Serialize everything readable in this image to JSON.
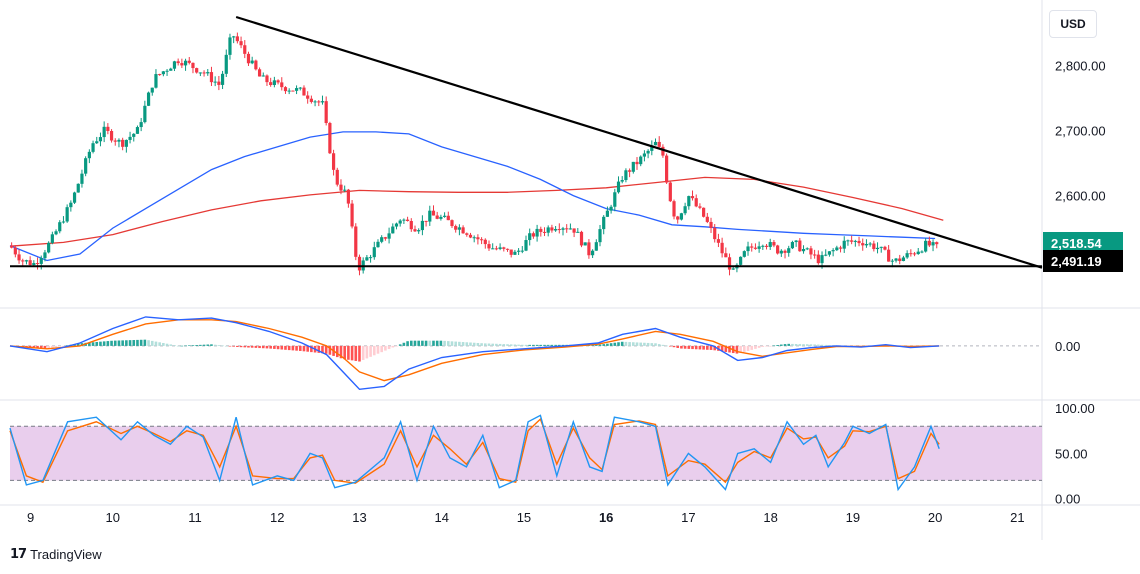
{
  "currency": "USD",
  "footer": {
    "brand": "TradingView",
    "logo_icon": "tradingview-logo-icon"
  },
  "price_tags": {
    "current": "2,518.54",
    "support": "2,491.19"
  },
  "colors": {
    "up": "#089981",
    "down": "#f23645",
    "ma_short": "#2962ff",
    "ma_long": "#e53935",
    "macd": "#2962ff",
    "signal": "#ff6d00",
    "stoch_k": "#2196f3",
    "stoch_d": "#ff6d00",
    "stoch_band": "#e1bee7",
    "trendline": "#000000"
  },
  "chart_data": [
    {
      "type": "candlestick",
      "panel": "price",
      "y_ticks": [
        2800,
        2700,
        2600
      ],
      "y_tick_labels": [
        "2,800.00",
        "2,700.00",
        "2,600.00"
      ],
      "ylim": [
        2430,
        2895
      ],
      "x_ticks": [
        "9",
        "10",
        "11",
        "12",
        "13",
        "14",
        "15",
        "16",
        "17",
        "18",
        "19",
        "20",
        "21"
      ],
      "bold_x_tick": "16",
      "x_range_days": [
        8.75,
        21.3
      ],
      "close_path": [
        [
          8.75,
          2523
        ],
        [
          8.9,
          2500
        ],
        [
          9.05,
          2495
        ],
        [
          9.25,
          2530
        ],
        [
          9.5,
          2590
        ],
        [
          9.75,
          2680
        ],
        [
          9.9,
          2700
        ],
        [
          10.1,
          2680
        ],
        [
          10.3,
          2700
        ],
        [
          10.5,
          2780
        ],
        [
          10.8,
          2810
        ],
        [
          11.1,
          2790
        ],
        [
          11.3,
          2770
        ],
        [
          11.45,
          2850
        ],
        [
          11.55,
          2830
        ],
        [
          11.8,
          2780
        ],
        [
          12.0,
          2770
        ],
        [
          12.3,
          2760
        ],
        [
          12.55,
          2740
        ],
        [
          12.7,
          2625
        ],
        [
          12.85,
          2600
        ],
        [
          12.95,
          2510
        ],
        [
          13.0,
          2490
        ],
        [
          13.2,
          2520
        ],
        [
          13.5,
          2565
        ],
        [
          13.7,
          2550
        ],
        [
          13.85,
          2570
        ],
        [
          14.0,
          2565
        ],
        [
          14.3,
          2545
        ],
        [
          14.6,
          2520
        ],
        [
          14.9,
          2510
        ],
        [
          15.1,
          2540
        ],
        [
          15.4,
          2555
        ],
        [
          15.6,
          2550
        ],
        [
          15.8,
          2510
        ],
        [
          16.0,
          2570
        ],
        [
          16.2,
          2630
        ],
        [
          16.45,
          2660
        ],
        [
          16.6,
          2680
        ],
        [
          16.7,
          2660
        ],
        [
          16.75,
          2610
        ],
        [
          16.85,
          2560
        ],
        [
          17.0,
          2600
        ],
        [
          17.2,
          2565
        ],
        [
          17.4,
          2515
        ],
        [
          17.55,
          2480
        ],
        [
          17.7,
          2515
        ],
        [
          17.9,
          2530
        ],
        [
          18.1,
          2515
        ],
        [
          18.3,
          2525
        ],
        [
          18.6,
          2500
        ],
        [
          18.9,
          2528
        ],
        [
          19.1,
          2530
        ],
        [
          19.3,
          2520
        ],
        [
          19.5,
          2498
        ],
        [
          19.7,
          2510
        ],
        [
          19.9,
          2525
        ],
        [
          20.05,
          2518
        ]
      ],
      "ma_short": [
        [
          8.75,
          2523
        ],
        [
          9.2,
          2500
        ],
        [
          9.6,
          2510
        ],
        [
          10.0,
          2550
        ],
        [
          10.4,
          2580
        ],
        [
          10.8,
          2610
        ],
        [
          11.2,
          2640
        ],
        [
          11.6,
          2660
        ],
        [
          12.0,
          2675
        ],
        [
          12.4,
          2690
        ],
        [
          12.8,
          2698
        ],
        [
          13.2,
          2698
        ],
        [
          13.6,
          2695
        ],
        [
          14.0,
          2675
        ],
        [
          14.4,
          2660
        ],
        [
          14.8,
          2645
        ],
        [
          15.2,
          2625
        ],
        [
          15.6,
          2600
        ],
        [
          16.0,
          2580
        ],
        [
          16.4,
          2570
        ],
        [
          16.8,
          2555
        ],
        [
          17.2,
          2552
        ],
        [
          17.6,
          2548
        ],
        [
          18.0,
          2545
        ],
        [
          18.4,
          2542
        ],
        [
          18.8,
          2540
        ],
        [
          19.2,
          2538
        ],
        [
          19.6,
          2536
        ],
        [
          20.0,
          2534
        ]
      ],
      "ma_long": [
        [
          8.75,
          2522
        ],
        [
          9.4,
          2528
        ],
        [
          10.0,
          2540
        ],
        [
          10.6,
          2560
        ],
        [
          11.2,
          2578
        ],
        [
          11.8,
          2592
        ],
        [
          12.4,
          2601
        ],
        [
          13.0,
          2608
        ],
        [
          13.6,
          2606
        ],
        [
          14.2,
          2605
        ],
        [
          14.8,
          2605
        ],
        [
          15.4,
          2608
        ],
        [
          16.0,
          2612
        ],
        [
          16.6,
          2620
        ],
        [
          17.2,
          2628
        ],
        [
          17.8,
          2625
        ],
        [
          18.4,
          2613
        ],
        [
          19.0,
          2597
        ],
        [
          19.6,
          2580
        ],
        [
          20.1,
          2562
        ]
      ],
      "trendline": [
        [
          11.5,
          2875
        ],
        [
          21.3,
          2489
        ]
      ],
      "support_level": 2491.19,
      "current_price": 2518.54
    },
    {
      "type": "macd",
      "panel": "macd",
      "y_ticks": [
        0
      ],
      "y_tick_labels": [
        "0.00"
      ],
      "ylim": [
        -90,
        62
      ],
      "macd": [
        [
          8.75,
          0
        ],
        [
          9.2,
          -10
        ],
        [
          9.6,
          5
        ],
        [
          10.0,
          30
        ],
        [
          10.4,
          50
        ],
        [
          10.8,
          45
        ],
        [
          11.2,
          48
        ],
        [
          11.5,
          40
        ],
        [
          11.9,
          25
        ],
        [
          12.3,
          5
        ],
        [
          12.6,
          -15
        ],
        [
          12.8,
          -45
        ],
        [
          13.0,
          -75
        ],
        [
          13.3,
          -70
        ],
        [
          13.6,
          -40
        ],
        [
          14.0,
          -20
        ],
        [
          14.5,
          -10
        ],
        [
          15.0,
          -5
        ],
        [
          15.5,
          0
        ],
        [
          15.9,
          5
        ],
        [
          16.2,
          20
        ],
        [
          16.6,
          30
        ],
        [
          16.9,
          15
        ],
        [
          17.3,
          0
        ],
        [
          17.6,
          -25
        ],
        [
          17.9,
          -20
        ],
        [
          18.2,
          -8
        ],
        [
          18.5,
          -3
        ],
        [
          18.8,
          0
        ],
        [
          19.1,
          -2
        ],
        [
          19.4,
          2
        ],
        [
          19.7,
          -3
        ],
        [
          20.05,
          0
        ]
      ],
      "signal": [
        [
          8.75,
          0
        ],
        [
          9.2,
          -5
        ],
        [
          9.6,
          0
        ],
        [
          10.0,
          20
        ],
        [
          10.4,
          38
        ],
        [
          10.8,
          45
        ],
        [
          11.2,
          45
        ],
        [
          11.5,
          42
        ],
        [
          11.9,
          30
        ],
        [
          12.3,
          15
        ],
        [
          12.6,
          0
        ],
        [
          12.8,
          -20
        ],
        [
          13.0,
          -45
        ],
        [
          13.3,
          -60
        ],
        [
          13.6,
          -50
        ],
        [
          14.0,
          -30
        ],
        [
          14.5,
          -15
        ],
        [
          15.0,
          -7
        ],
        [
          15.5,
          -2
        ],
        [
          15.9,
          3
        ],
        [
          16.2,
          12
        ],
        [
          16.6,
          25
        ],
        [
          16.9,
          20
        ],
        [
          17.3,
          8
        ],
        [
          17.6,
          -10
        ],
        [
          17.9,
          -18
        ],
        [
          18.2,
          -12
        ],
        [
          18.5,
          -6
        ],
        [
          18.8,
          -1
        ],
        [
          19.1,
          -1
        ],
        [
          19.4,
          0
        ],
        [
          19.7,
          -1
        ],
        [
          20.05,
          0
        ]
      ]
    },
    {
      "type": "stochastic",
      "panel": "stochastic",
      "y_ticks": [
        100,
        50,
        0
      ],
      "y_tick_labels": [
        "100.00",
        "50.00",
        "0.00"
      ],
      "ylim": [
        -5,
        108
      ],
      "band": [
        20,
        80
      ],
      "k": [
        [
          8.75,
          78
        ],
        [
          8.95,
          15
        ],
        [
          9.15,
          20
        ],
        [
          9.45,
          85
        ],
        [
          9.8,
          90
        ],
        [
          10.1,
          65
        ],
        [
          10.3,
          85
        ],
        [
          10.5,
          70
        ],
        [
          10.7,
          60
        ],
        [
          10.9,
          80
        ],
        [
          11.1,
          68
        ],
        [
          11.3,
          20
        ],
        [
          11.5,
          90
        ],
        [
          11.7,
          15
        ],
        [
          12.0,
          25
        ],
        [
          12.2,
          20
        ],
        [
          12.4,
          50
        ],
        [
          12.55,
          45
        ],
        [
          12.7,
          12
        ],
        [
          12.95,
          18
        ],
        [
          13.3,
          45
        ],
        [
          13.5,
          85
        ],
        [
          13.7,
          20
        ],
        [
          13.9,
          80
        ],
        [
          14.1,
          45
        ],
        [
          14.3,
          35
        ],
        [
          14.5,
          70
        ],
        [
          14.7,
          12
        ],
        [
          14.9,
          20
        ],
        [
          15.05,
          85
        ],
        [
          15.2,
          92
        ],
        [
          15.4,
          25
        ],
        [
          15.6,
          85
        ],
        [
          15.8,
          35
        ],
        [
          15.95,
          30
        ],
        [
          16.1,
          90
        ],
        [
          16.4,
          85
        ],
        [
          16.6,
          80
        ],
        [
          16.75,
          15
        ],
        [
          17.0,
          50
        ],
        [
          17.2,
          35
        ],
        [
          17.45,
          10
        ],
        [
          17.6,
          50
        ],
        [
          17.8,
          55
        ],
        [
          18.0,
          40
        ],
        [
          18.2,
          85
        ],
        [
          18.4,
          60
        ],
        [
          18.55,
          70
        ],
        [
          18.7,
          35
        ],
        [
          18.9,
          62
        ],
        [
          19.0,
          80
        ],
        [
          19.2,
          72
        ],
        [
          19.4,
          82
        ],
        [
          19.55,
          10
        ],
        [
          19.75,
          35
        ],
        [
          19.95,
          80
        ],
        [
          20.05,
          55
        ]
      ],
      "d": [
        [
          8.75,
          75
        ],
        [
          8.95,
          25
        ],
        [
          9.15,
          18
        ],
        [
          9.45,
          75
        ],
        [
          9.8,
          85
        ],
        [
          10.1,
          72
        ],
        [
          10.3,
          80
        ],
        [
          10.5,
          72
        ],
        [
          10.7,
          63
        ],
        [
          10.9,
          75
        ],
        [
          11.1,
          70
        ],
        [
          11.3,
          35
        ],
        [
          11.5,
          80
        ],
        [
          11.7,
          25
        ],
        [
          12.0,
          22
        ],
        [
          12.2,
          22
        ],
        [
          12.4,
          45
        ],
        [
          12.55,
          48
        ],
        [
          12.7,
          20
        ],
        [
          12.95,
          17
        ],
        [
          13.3,
          38
        ],
        [
          13.5,
          75
        ],
        [
          13.7,
          35
        ],
        [
          13.9,
          70
        ],
        [
          14.1,
          55
        ],
        [
          14.3,
          38
        ],
        [
          14.5,
          62
        ],
        [
          14.7,
          22
        ],
        [
          14.9,
          18
        ],
        [
          15.05,
          75
        ],
        [
          15.2,
          88
        ],
        [
          15.4,
          38
        ],
        [
          15.6,
          78
        ],
        [
          15.8,
          45
        ],
        [
          15.95,
          32
        ],
        [
          16.1,
          82
        ],
        [
          16.4,
          86
        ],
        [
          16.6,
          82
        ],
        [
          16.75,
          25
        ],
        [
          17.0,
          42
        ],
        [
          17.2,
          38
        ],
        [
          17.45,
          18
        ],
        [
          17.6,
          40
        ],
        [
          17.8,
          52
        ],
        [
          18.0,
          45
        ],
        [
          18.2,
          78
        ],
        [
          18.4,
          66
        ],
        [
          18.55,
          68
        ],
        [
          18.7,
          45
        ],
        [
          18.9,
          58
        ],
        [
          19.0,
          75
        ],
        [
          19.2,
          74
        ],
        [
          19.4,
          80
        ],
        [
          19.55,
          22
        ],
        [
          19.75,
          30
        ],
        [
          19.95,
          72
        ],
        [
          20.05,
          60
        ]
      ]
    }
  ]
}
